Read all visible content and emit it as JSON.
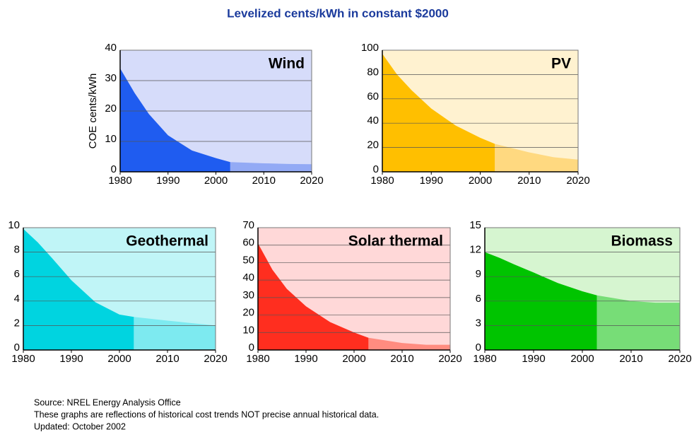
{
  "title": "Levelized cents/kWh in constant $2000",
  "notes": [
    "Source: NREL Energy Analysis Office",
    "These graphs are reflections of historical cost trends NOT precise annual historical data.",
    "Updated: October 2002"
  ],
  "chart_data": [
    {
      "type": "area",
      "title": "Wind",
      "y_label": "COE cents/kWh",
      "background": "#d6dcfa",
      "x": [
        1980,
        1983,
        1986,
        1990,
        1995,
        2000,
        2003,
        2010,
        2015,
        2020
      ],
      "series": [
        {
          "color": "#1f5cf0",
          "values": [
            34,
            26,
            19,
            12,
            7,
            4.5,
            3.2,
            null,
            null,
            null
          ]
        },
        {
          "color": "#93aaf5",
          "values": [
            null,
            null,
            null,
            null,
            null,
            null,
            3.2,
            2.8,
            2.6,
            2.5
          ]
        }
      ],
      "xlim": [
        1980,
        2020
      ],
      "xticks": [
        1980,
        1990,
        2000,
        2010,
        2020
      ],
      "ylim": [
        0,
        40
      ],
      "yticks": [
        0,
        10,
        20,
        30,
        40
      ],
      "grid": true
    },
    {
      "type": "area",
      "title": "PV",
      "background": "#fff2d0",
      "x": [
        1980,
        1983,
        1986,
        1990,
        1995,
        2000,
        2003,
        2010,
        2015,
        2020
      ],
      "series": [
        {
          "color": "#ffbf00",
          "values": [
            97,
            80,
            67,
            52,
            38,
            28,
            23,
            null,
            null,
            null
          ]
        },
        {
          "color": "#ffd980",
          "values": [
            null,
            null,
            null,
            null,
            null,
            null,
            23,
            16,
            12,
            10
          ]
        }
      ],
      "xlim": [
        1980,
        2020
      ],
      "xticks": [
        1980,
        1990,
        2000,
        2010,
        2020
      ],
      "ylim": [
        0,
        100
      ],
      "yticks": [
        0,
        20,
        40,
        60,
        80,
        100
      ],
      "grid": true
    },
    {
      "type": "area",
      "title": "Geothermal",
      "background": "#c0f5f7",
      "x": [
        1980,
        1983,
        1986,
        1990,
        1995,
        2000,
        2003,
        2010,
        2015,
        2020
      ],
      "series": [
        {
          "color": "#00d4e0",
          "values": [
            9.9,
            8.8,
            7.5,
            5.7,
            3.9,
            2.9,
            2.7,
            null,
            null,
            null
          ]
        },
        {
          "color": "#7deaf0",
          "values": [
            null,
            null,
            null,
            null,
            null,
            null,
            2.7,
            2.4,
            2.2,
            2.0
          ]
        }
      ],
      "xlim": [
        1980,
        2020
      ],
      "xticks": [
        1980,
        1990,
        2000,
        2010,
        2020
      ],
      "ylim": [
        0,
        10
      ],
      "yticks": [
        0,
        2,
        4,
        6,
        8,
        10
      ],
      "grid": true
    },
    {
      "type": "area",
      "title": "Solar thermal",
      "background": "#ffd8d8",
      "x": [
        1980,
        1983,
        1986,
        1990,
        1995,
        2000,
        2003,
        2010,
        2015,
        2020
      ],
      "series": [
        {
          "color": "#ff2e1f",
          "values": [
            61,
            46,
            35,
            25,
            16,
            10,
            7,
            null,
            null,
            null
          ]
        },
        {
          "color": "#ff8c80",
          "values": [
            null,
            null,
            null,
            null,
            null,
            null,
            7,
            4,
            3,
            3
          ]
        }
      ],
      "xlim": [
        1980,
        2020
      ],
      "xticks": [
        1980,
        1990,
        2000,
        2010,
        2020
      ],
      "ylim": [
        0,
        70
      ],
      "yticks": [
        0,
        10,
        20,
        30,
        40,
        50,
        60,
        70
      ],
      "grid": true
    },
    {
      "type": "area",
      "title": "Biomass",
      "background": "#d6f5d0",
      "x": [
        1980,
        1983,
        1986,
        1990,
        1995,
        2000,
        2003,
        2010,
        2015,
        2020
      ],
      "series": [
        {
          "color": "#00c400",
          "values": [
            12,
            11.3,
            10.5,
            9.5,
            8.2,
            7.2,
            6.7,
            null,
            null,
            null
          ]
        },
        {
          "color": "#77dd77",
          "values": [
            null,
            null,
            null,
            null,
            null,
            null,
            6.7,
            6.0,
            5.8,
            5.8
          ]
        }
      ],
      "xlim": [
        1980,
        2020
      ],
      "xticks": [
        1980,
        1990,
        2000,
        2010,
        2020
      ],
      "ylim": [
        0,
        15
      ],
      "yticks": [
        0,
        3,
        6,
        9,
        12,
        15
      ],
      "grid": true
    }
  ]
}
